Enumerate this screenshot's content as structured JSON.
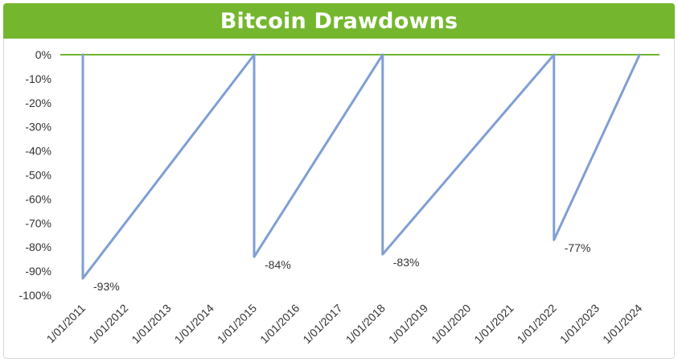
{
  "chart_data": {
    "type": "line",
    "title": "Bitcoin Drawdowns",
    "xlabel": "",
    "ylabel": "",
    "categories": [
      "1/01/2011",
      "1/01/2012",
      "1/01/2013",
      "1/01/2014",
      "1/01/2015",
      "1/01/2016",
      "1/01/2017",
      "1/01/2018",
      "1/01/2019",
      "1/01/2020",
      "1/01/2021",
      "1/01/2022",
      "1/01/2023",
      "1/01/2024"
    ],
    "ylim": [
      -100,
      0
    ],
    "yticks": [
      0,
      -10,
      -20,
      -30,
      -40,
      -50,
      -60,
      -70,
      -80,
      -90,
      -100
    ],
    "ytick_labels": [
      "0%",
      "-10%",
      "-20%",
      "-30%",
      "-40%",
      "-50%",
      "-60%",
      "-70%",
      "-80%",
      "-90%",
      "-100%"
    ],
    "series": [
      {
        "name": "",
        "color": "#7f9fd4",
        "points": [
          {
            "x": "1/01/2011",
            "y": 0
          },
          {
            "x": "1/01/2011",
            "y": -93
          },
          {
            "x": "1/01/2015",
            "y": 0
          },
          {
            "x": "1/01/2015",
            "y": -84
          },
          {
            "x": "1/01/2018",
            "y": 0
          },
          {
            "x": "1/01/2018",
            "y": -83
          },
          {
            "x": "1/01/2022",
            "y": 0
          },
          {
            "x": "1/01/2022",
            "y": -77
          },
          {
            "x": "1/01/2024",
            "y": 0
          }
        ]
      }
    ],
    "data_labels": [
      {
        "x": "1/01/2011",
        "y": -93,
        "text": "-93%"
      },
      {
        "x": "1/01/2015",
        "y": -84,
        "text": "-84%"
      },
      {
        "x": "1/01/2018",
        "y": -83,
        "text": "-83%"
      },
      {
        "x": "1/01/2022",
        "y": -77,
        "text": "-77%"
      }
    ],
    "zero_line_color": "#70b52e",
    "title_color": "#74b72e",
    "grid": false,
    "legend": "none"
  }
}
